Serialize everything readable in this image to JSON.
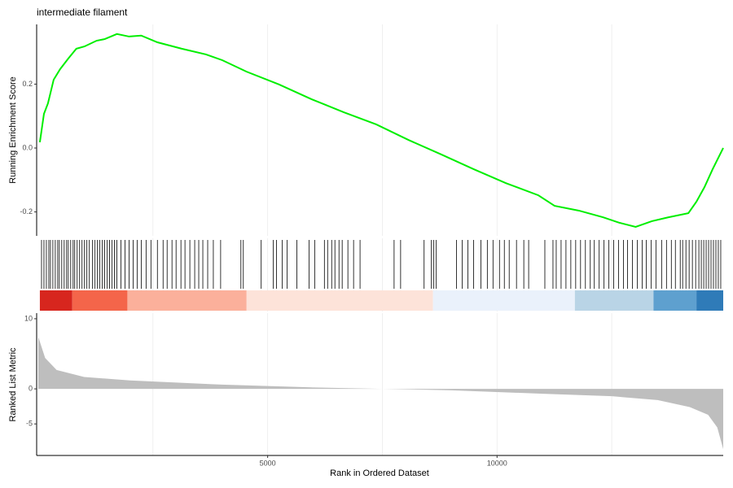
{
  "chart_data": [
    {
      "type": "line",
      "title": "intermediate filament",
      "ylabel": "Running Enrichment Score",
      "color": "#00ee00",
      "x": [
        35,
        124,
        212,
        336,
        477,
        654,
        830,
        1007,
        1272,
        1449,
        1714,
        1979,
        2244,
        2597,
        3127,
        3657,
        4011,
        4541,
        5247,
        5954,
        6661,
        7367,
        8074,
        8781,
        9488,
        10194,
        10901,
        11254,
        11784,
        12314,
        12668,
        13021,
        13375,
        13728,
        14170,
        14346,
        14523,
        14700,
        14930
      ],
      "values": [
        0.018,
        0.107,
        0.14,
        0.214,
        0.247,
        0.28,
        0.311,
        0.318,
        0.336,
        0.341,
        0.357,
        0.349,
        0.352,
        0.331,
        0.311,
        0.293,
        0.275,
        0.239,
        0.199,
        0.153,
        0.112,
        0.074,
        0.025,
        -0.02,
        -0.066,
        -0.11,
        -0.148,
        -0.181,
        -0.196,
        -0.217,
        -0.234,
        -0.247,
        -0.229,
        -0.217,
        -0.204,
        -0.168,
        -0.122,
        -0.066,
        0.0
      ],
      "xlim": [
        -35,
        14930
      ],
      "ylim": [
        -0.275,
        0.387
      ],
      "yticks": [
        0.2,
        {
          "value": 0,
          "label": "0.0"
        },
        -0.2
      ],
      "xgrid": [
        2500,
        5000,
        7500,
        10000,
        12500
      ]
    },
    {
      "type": "rug",
      "color": "#000000",
      "hits": [
        71,
        124,
        177,
        230,
        265,
        318,
        371,
        424,
        459,
        512,
        565,
        618,
        654,
        707,
        760,
        795,
        848,
        901,
        954,
        1007,
        1060,
        1113,
        1184,
        1237,
        1290,
        1343,
        1396,
        1449,
        1502,
        1555,
        1608,
        1661,
        1714,
        1802,
        1890,
        1979,
        2067,
        2155,
        2244,
        2350,
        2456,
        2597,
        2721,
        2809,
        2915,
        3004,
        3110,
        3198,
        3304,
        3410,
        3498,
        3587,
        3693,
        3816,
        3975,
        4417,
        4470,
        4859,
        5124,
        5194,
        5318,
        5424,
        5636,
        5901,
        6025,
        6237,
        6307,
        6396,
        6466,
        6555,
        6625,
        6749,
        6873,
        7014,
        7756,
        7898,
        8410,
        8569,
        8622,
        8675,
        9117,
        9240,
        9364,
        9488,
        9647,
        9788,
        9912,
        10053,
        10159,
        10265,
        10424,
        10583,
        10689,
        11042,
        11219,
        11290,
        11396,
        11502,
        11608,
        11714,
        11820,
        11926,
        12032,
        12120,
        12226,
        12332,
        12438,
        12544,
        12650,
        12756,
        12845,
        12951,
        13057,
        13163,
        13251,
        13357,
        13463,
        13587,
        13693,
        13799,
        13887,
        13993,
        14046,
        14117,
        14187,
        14258,
        14329,
        14399,
        14452,
        14505,
        14558,
        14611,
        14664,
        14717,
        14770,
        14823,
        14876
      ],
      "bands": [
        {
          "start": 35,
          "end": 742,
          "color": "#d7261e"
        },
        {
          "start": 742,
          "end": 1943,
          "color": "#f4654a"
        },
        {
          "start": 1943,
          "end": 4541,
          "color": "#fbb09b"
        },
        {
          "start": 4541,
          "end": 8604,
          "color": "#fde3d9"
        },
        {
          "start": 8604,
          "end": 11696,
          "color": "#eaf1fb"
        },
        {
          "start": 11696,
          "end": 13410,
          "color": "#b9d4e6"
        },
        {
          "start": 13410,
          "end": 14346,
          "color": "#5ea0cf"
        },
        {
          "start": 14346,
          "end": 14930,
          "color": "#2f7bb8"
        }
      ],
      "xlim": [
        -35,
        14930
      ],
      "xgrid": [
        2500,
        5000,
        7500,
        10000,
        12500
      ]
    },
    {
      "type": "area",
      "ylabel": "Ranked List Metric",
      "xlabel": "Rank in Ordered Dataset",
      "color": "#bebebe",
      "x": [
        1,
        150,
        400,
        1000,
        2000,
        4000,
        6000,
        7500,
        9000,
        11000,
        12500,
        13500,
        14200,
        14600,
        14800,
        14930
      ],
      "values": [
        7.4,
        4.4,
        2.7,
        1.7,
        1.2,
        0.6,
        0.2,
        0,
        -0.2,
        -0.7,
        -1.05,
        -1.6,
        -2.6,
        -3.7,
        -5.5,
        -8.6
      ],
      "xlim": [
        -35,
        14930
      ],
      "ylim": [
        -9.5,
        10.8
      ],
      "yticks": [
        10,
        0,
        -5
      ],
      "xticks": [
        5000,
        10000
      ],
      "xgrid": [
        2500,
        5000,
        7500,
        10000,
        12500
      ]
    }
  ]
}
